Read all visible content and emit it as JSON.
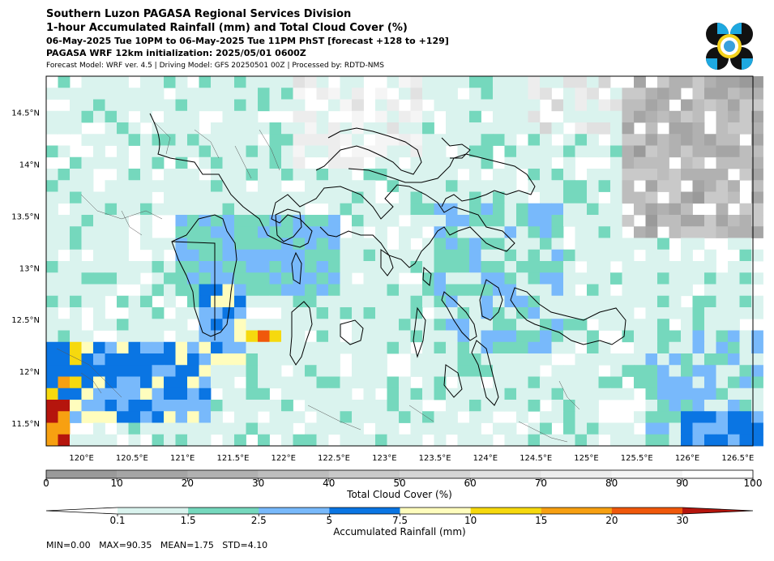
{
  "header": {
    "title": "Southern Luzon PAGASA Regional Services Division",
    "subtitle": "1-hour Accumulated Rainfall (mm) and Total Cloud Cover (%)",
    "valid_time": "06-May-2025 Tue 10PM to 06-May-2025 Tue 11PM PhST [forecast +128 to +129]",
    "init": "PAGASA WRF 12km initialization: 2025/05/01 0600Z",
    "model_info": "Forecast Model: WRF ver. 4.5 | Driving Model: GFS 20250501 00Z | Processed by: RDTD-NMS"
  },
  "map": {
    "lon_labels": [
      "120°E",
      "120.5°E",
      "121°E",
      "121.5°E",
      "122°E",
      "122.5°E",
      "123°E",
      "123.5°E",
      "124°E",
      "124.5°E",
      "125°E",
      "125.5°E",
      "126°E",
      "126.5°E"
    ],
    "lat_labels": [
      "14.5°N",
      "14°N",
      "13.5°N",
      "13°N",
      "12.5°N",
      "12°N",
      "11.5°N"
    ],
    "lon_range": [
      119.65,
      126.65
    ],
    "lat_range": [
      11.28,
      14.85
    ]
  },
  "cloud_colorbar": {
    "label": "Total Cloud Cover (%)",
    "ticks": [
      "0",
      "10",
      "20",
      "30",
      "40",
      "50",
      "60",
      "70",
      "80",
      "90",
      "100"
    ],
    "colors": [
      "#9a9a9a",
      "#a5a5a5",
      "#b1b1b1",
      "#bdbdbd",
      "#c9c9c9",
      "#d5d5d5",
      "#e1e1e1",
      "#ededed",
      "#f5f5f5",
      "#ffffff"
    ]
  },
  "rain_colorbar": {
    "label": "Accumulated Rainfall (mm)",
    "ticks": [
      "0.1",
      "1.5",
      "2.5",
      "5",
      "7.5",
      "10",
      "15",
      "20",
      "30"
    ],
    "colors": [
      "#daf3ee",
      "#75d8bd",
      "#78b9fb",
      "#0a75e3",
      "#fffdbd",
      "#f6d90e",
      "#f7a011",
      "#f0580b",
      "#b5150d"
    ]
  },
  "stats": "MIN=0.00   MAX=90.35   MEAN=1.75   STD=4.10"
}
